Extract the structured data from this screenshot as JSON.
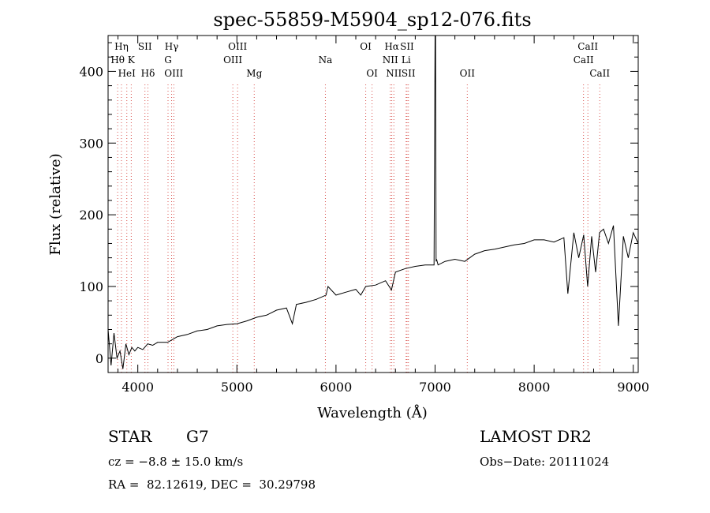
{
  "chart_data": {
    "type": "line",
    "title": "spec-55859-M5904_sp12-076.fits",
    "xlabel": "Wavelength (Å)",
    "ylabel": "Flux (relative)",
    "xlim": [
      3700,
      9050
    ],
    "ylim": [
      -20,
      450
    ],
    "xticks": [
      4000,
      5000,
      6000,
      7000,
      8000,
      9000
    ],
    "yticks": [
      0,
      100,
      200,
      300,
      400
    ],
    "grid": false,
    "legend": "none",
    "colors": {
      "line": "#000000",
      "marker": "#d9534f"
    },
    "series": [
      {
        "x": [
          3700,
          3730,
          3760,
          3790,
          3820,
          3850,
          3880,
          3910,
          3940,
          3970,
          4000,
          4050,
          4100,
          4150,
          4200,
          4300,
          4400,
          4500,
          4600,
          4700,
          4800,
          4900,
          5000,
          5100,
          5200,
          5300,
          5400,
          5500,
          5560,
          5600,
          5700,
          5800,
          5900,
          5920,
          6000,
          6100,
          6200,
          6250,
          6300,
          6400,
          6500,
          6560,
          6600,
          6700,
          6800,
          6900,
          6990,
          7000,
          7005,
          7010,
          7015,
          7030,
          7100,
          7200,
          7300,
          7400,
          7500,
          7600,
          7700,
          7800,
          7900,
          8000,
          8100,
          8200,
          8300,
          8340,
          8400,
          8450,
          8500,
          8540,
          8580,
          8620,
          8660,
          8700,
          8750,
          8800,
          8850,
          8900,
          8950,
          9000,
          9050
        ],
        "y": [
          40,
          -10,
          35,
          0,
          10,
          -15,
          20,
          5,
          15,
          10,
          15,
          12,
          20,
          18,
          22,
          22,
          30,
          33,
          38,
          40,
          45,
          47,
          48,
          52,
          57,
          60,
          67,
          70,
          48,
          75,
          78,
          82,
          88,
          100,
          88,
          92,
          96,
          88,
          100,
          102,
          108,
          95,
          120,
          125,
          128,
          130,
          130,
          450,
          450,
          135,
          138,
          130,
          135,
          138,
          135,
          145,
          150,
          152,
          155,
          158,
          160,
          165,
          165,
          162,
          168,
          90,
          175,
          140,
          172,
          100,
          170,
          120,
          175,
          180,
          160,
          185,
          45,
          170,
          140,
          175,
          160
        ]
      }
    ],
    "lines": [
      {
        "label": "Hη",
        "x": 3835,
        "row": 1
      },
      {
        "label": "Hθ",
        "x": 3797,
        "row": 2
      },
      {
        "label": "HeI",
        "x": 3889,
        "row": 3
      },
      {
        "label": "K",
        "x": 3934,
        "row": 2
      },
      {
        "label": "SII",
        "x": 4072,
        "row": 1
      },
      {
        "label": "Hδ",
        "x": 4102,
        "row": 3
      },
      {
        "label": "Hγ",
        "x": 4341,
        "row": 1
      },
      {
        "label": "G",
        "x": 4305,
        "row": 2
      },
      {
        "label": "OIII",
        "x": 4363,
        "row": 3
      },
      {
        "label": "OIII",
        "x": 5007,
        "row": 1
      },
      {
        "label": "OIII",
        "x": 4959,
        "row": 2
      },
      {
        "label": "Mg",
        "x": 5175,
        "row": 3
      },
      {
        "label": "Na",
        "x": 5893,
        "row": 2
      },
      {
        "label": "OI",
        "x": 6300,
        "row": 1
      },
      {
        "label": "OI",
        "x": 6364,
        "row": 3
      },
      {
        "label": "Hα",
        "x": 6563,
        "row": 1
      },
      {
        "label": "SII",
        "x": 6717,
        "row": 1
      },
      {
        "label": "NII",
        "x": 6548,
        "row": 2
      },
      {
        "label": "Li",
        "x": 6708,
        "row": 2
      },
      {
        "label": "NII",
        "x": 6584,
        "row": 3
      },
      {
        "label": "SII",
        "x": 6731,
        "row": 3
      },
      {
        "label": "OII",
        "x": 7325,
        "row": 3
      },
      {
        "label": "CaII",
        "x": 8542,
        "row": 1
      },
      {
        "label": "CaII",
        "x": 8498,
        "row": 2
      },
      {
        "label": "CaII",
        "x": 8662,
        "row": 3
      }
    ]
  },
  "info": {
    "object_class": "STAR",
    "subclass": "G7",
    "survey": "LAMOST DR2",
    "cz": "cz = −8.8 ± 15.0 km/s",
    "obs_date": "Obs−Date: 20111024",
    "coords": "RA =  82.12619, DEC =  30.29798"
  }
}
